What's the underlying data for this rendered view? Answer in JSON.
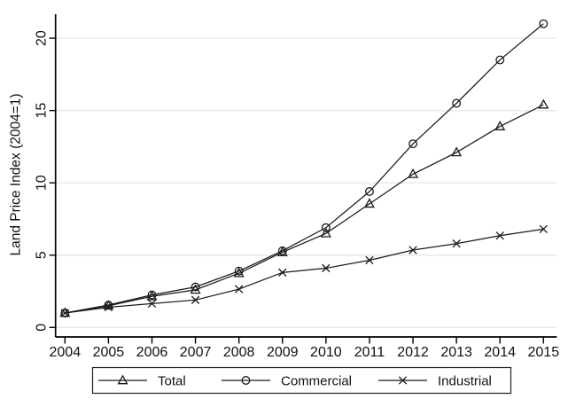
{
  "figure": {
    "kind": "stata-style-line-chart",
    "background": "#ffffff"
  },
  "chart_data": {
    "type": "line",
    "title": "",
    "xlabel": "",
    "ylabel": "Land Price Index (2004=1)",
    "x": [
      2004,
      2005,
      2006,
      2007,
      2008,
      2009,
      2010,
      2011,
      2012,
      2013,
      2014,
      2015
    ],
    "yticks": [
      0,
      5,
      10,
      15,
      20
    ],
    "ylim": [
      0,
      21.7
    ],
    "grid": "horizontal",
    "legend_position": "bottom-center-boxed",
    "series": [
      {
        "name": "Total",
        "marker": "triangle",
        "values": [
          1.0,
          1.5,
          2.15,
          2.6,
          3.75,
          5.2,
          6.5,
          8.55,
          10.6,
          12.1,
          13.9,
          15.4
        ]
      },
      {
        "name": "Commercial",
        "marker": "circle",
        "values": [
          1.0,
          1.55,
          2.25,
          2.8,
          3.9,
          5.3,
          6.9,
          9.4,
          12.7,
          15.5,
          18.5,
          21.0
        ]
      },
      {
        "name": "Industrial",
        "marker": "x",
        "values": [
          1.0,
          1.4,
          1.65,
          1.9,
          2.65,
          3.8,
          4.1,
          4.65,
          5.35,
          5.8,
          6.35,
          6.8
        ]
      }
    ],
    "colors": {
      "line": "#1a1a1a",
      "marker": "#1a1a1a",
      "grid": "#e8e8e8",
      "axis": "#000000",
      "text": "#111111",
      "legend_border": "#222222",
      "background": "#ffffff"
    }
  }
}
